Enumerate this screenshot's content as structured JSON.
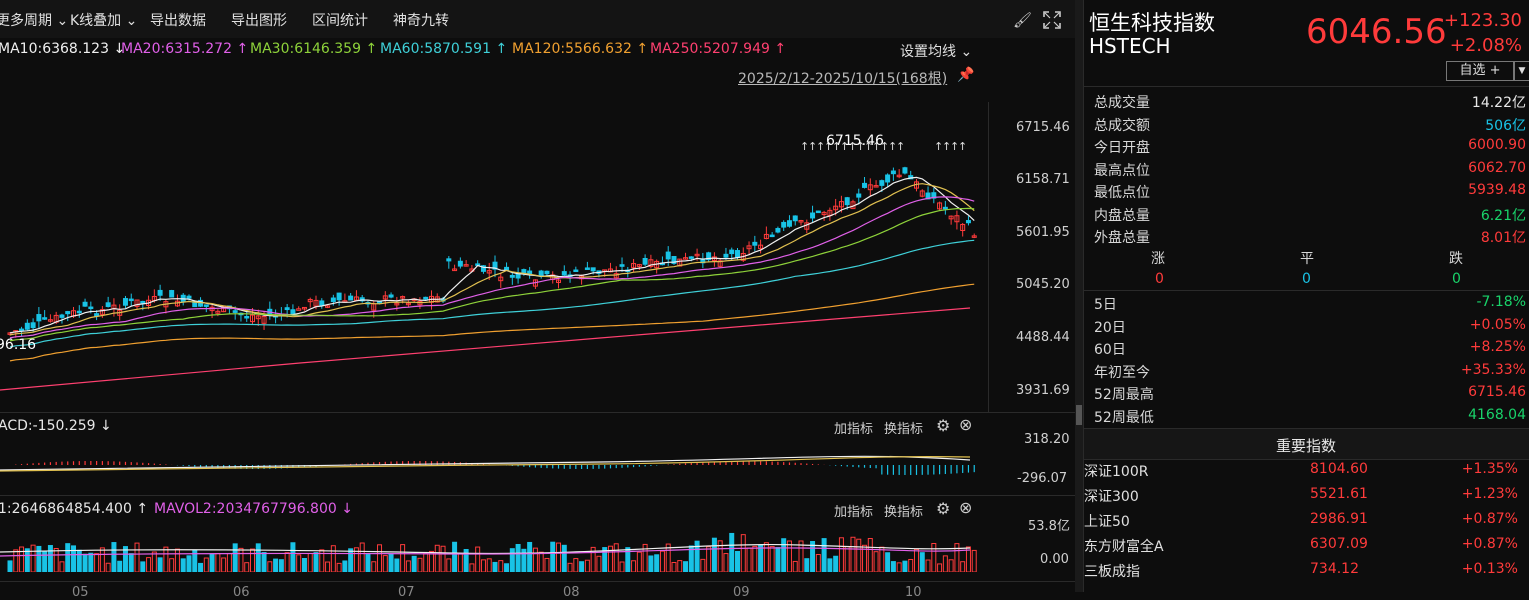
{
  "toolbar": {
    "items": [
      "更多周期 ⌄",
      "K线叠加 ⌄",
      "导出数据",
      "导出图形",
      "区间统计",
      "神奇九转"
    ],
    "settings_label": "设置均线 ⌄"
  },
  "ma_legend": {
    "ma10": "MA10:6368.123 ↓",
    "ma20": "MA20:6315.272 ↑",
    "ma30": "MA30:6146.359 ↑",
    "ma60": "MA60:5870.591 ↑",
    "ma120": "MA120:5566.632 ↑",
    "ma250": "MA250:5207.949 ↑"
  },
  "date_range": "2025/2/12-2025/10/15(168根)",
  "price_axis": [
    "6715.46",
    "6158.71",
    "5601.95",
    "5045.20",
    "4488.44",
    "3931.69"
  ],
  "annotations": {
    "high": "6715.46",
    "low": "96.16"
  },
  "macd": {
    "label": "ACD:-150.259 ↓",
    "top": "318.20",
    "bottom": "-296.07"
  },
  "volume": {
    "label1": "1:2646864854.400 ↑",
    "label2": "MAVOL2:2034767796.800 ↓",
    "top": "53.8亿",
    "bottom": "0.00"
  },
  "panel_buttons": {
    "add": "加指标",
    "switch": "换指标"
  },
  "x_axis": [
    "05",
    "06",
    "07",
    "08",
    "09",
    "10"
  ],
  "header": {
    "name": "恒生科技指数",
    "code": "HSTECH",
    "price": "6046.56",
    "change": "+123.30",
    "change_pct": "+2.08%",
    "watch_btn": "自选 +",
    "colors": {
      "up": "#ff3b3b",
      "down": "#19d36a"
    }
  },
  "stats": [
    {
      "label": "总成交量",
      "value": "14.22亿",
      "color": "white"
    },
    {
      "label": "总成交额",
      "value": "506亿",
      "color": "cyan"
    },
    {
      "label": "今日开盘",
      "value": "6000.90",
      "color": "red"
    },
    {
      "label": "最高点位",
      "value": "6062.70",
      "color": "red"
    },
    {
      "label": "最低点位",
      "value": "5939.48",
      "color": "red"
    },
    {
      "label": "内盘总量",
      "value": "6.21亿",
      "color": "green"
    },
    {
      "label": "外盘总量",
      "value": "8.01亿",
      "color": "red"
    }
  ],
  "breadth": {
    "up_label": "涨",
    "flat_label": "平",
    "down_label": "跌",
    "up": "0",
    "flat": "0",
    "down": "0"
  },
  "periods": [
    {
      "label": "5日",
      "value": "-7.18%",
      "color": "green"
    },
    {
      "label": "20日",
      "value": "+0.05%",
      "color": "red"
    },
    {
      "label": "60日",
      "value": "+8.25%",
      "color": "red"
    },
    {
      "label": "年初至今",
      "value": "+35.33%",
      "color": "red"
    },
    {
      "label": "52周最高",
      "value": "6715.46",
      "color": "red"
    },
    {
      "label": "52周最低",
      "value": "4168.04",
      "color": "green"
    }
  ],
  "important_title": "重要指数",
  "indices": [
    {
      "name": "深证100R",
      "value": "8104.60",
      "pct": "+1.35%"
    },
    {
      "name": "深证300",
      "value": "5521.61",
      "pct": "+1.23%"
    },
    {
      "name": "上证50",
      "value": "2986.91",
      "pct": "+0.87%"
    },
    {
      "name": "东方财富全A",
      "value": "6307.09",
      "pct": "+0.87%"
    },
    {
      "name": "三板成指",
      "value": "734.12",
      "pct": "+0.13%"
    }
  ]
}
